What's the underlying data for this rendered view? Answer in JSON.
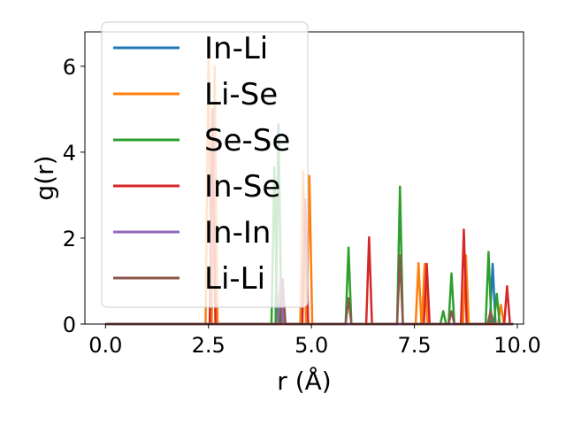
{
  "chart_data": {
    "type": "line",
    "xlabel": "r (Å)",
    "ylabel": "g(r)",
    "xlim": [
      -0.5,
      10.15
    ],
    "ylim": [
      0,
      6.8
    ],
    "x_ticks": [
      0.0,
      2.5,
      5.0,
      7.5,
      10.0
    ],
    "x_tick_labels": [
      "0.0",
      "2.5",
      "5.0",
      "7.5",
      "10.0"
    ],
    "y_ticks": [
      0,
      2,
      4,
      6
    ],
    "y_tick_labels": [
      "0",
      "2",
      "4",
      "6"
    ],
    "grid": false,
    "legend": "upper left",
    "series": [
      {
        "name": "In-Li",
        "color": "#1f77b4",
        "peaks": [
          [
            4.2,
            4.65
          ],
          [
            9.4,
            1.4
          ]
        ]
      },
      {
        "name": "Li-Se",
        "color": "#ff7f0e",
        "peaks": [
          [
            2.5,
            6.3
          ],
          [
            2.65,
            6.0
          ],
          [
            4.8,
            3.55
          ],
          [
            4.95,
            3.45
          ],
          [
            7.6,
            1.42
          ],
          [
            7.75,
            1.4
          ],
          [
            8.75,
            1.6
          ],
          [
            9.6,
            0.45
          ]
        ]
      },
      {
        "name": "Se-Se",
        "color": "#2ca02c",
        "peaks": [
          [
            4.1,
            3.65
          ],
          [
            4.2,
            4.4
          ],
          [
            5.9,
            1.78
          ],
          [
            7.15,
            3.2
          ],
          [
            8.2,
            0.3
          ],
          [
            8.4,
            1.18
          ],
          [
            9.3,
            1.68
          ],
          [
            9.5,
            0.7
          ]
        ]
      },
      {
        "name": "In-Se",
        "color": "#d62728",
        "peaks": [
          [
            2.6,
            5.0
          ],
          [
            4.85,
            2.9
          ],
          [
            6.4,
            2.02
          ],
          [
            7.8,
            1.4
          ],
          [
            8.7,
            2.2
          ],
          [
            9.75,
            0.88
          ]
        ]
      },
      {
        "name": "In-In",
        "color": "#9467bd",
        "peaks": [
          [
            4.25,
            1.1
          ],
          [
            9.35,
            0.25
          ]
        ]
      },
      {
        "name": "Li-Li",
        "color": "#8c564b",
        "peaks": [
          [
            4.3,
            1.05
          ],
          [
            5.9,
            0.6
          ],
          [
            7.15,
            1.6
          ],
          [
            8.4,
            0.3
          ],
          [
            9.35,
            0.3
          ]
        ]
      }
    ]
  }
}
